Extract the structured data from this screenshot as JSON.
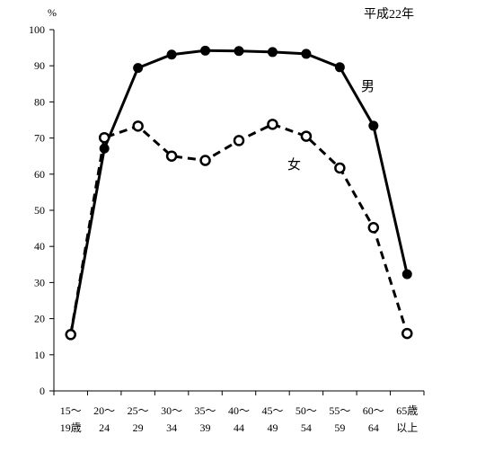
{
  "chart_data": {
    "type": "line",
    "title": "",
    "annotation": "平成22年",
    "ylabel": "%",
    "xlabel": "",
    "ylim": [
      0,
      100
    ],
    "yticks": [
      0,
      10,
      20,
      30,
      40,
      50,
      60,
      70,
      80,
      90,
      100
    ],
    "grid": false,
    "categories": [
      [
        "15～",
        "19歳"
      ],
      [
        "20～",
        "24"
      ],
      [
        "25～",
        "29"
      ],
      [
        "30～",
        "34"
      ],
      [
        "35～",
        "39"
      ],
      [
        "40～",
        "44"
      ],
      [
        "45～",
        "49"
      ],
      [
        "50～",
        "54"
      ],
      [
        "55～",
        "59"
      ],
      [
        "60～",
        "64"
      ],
      [
        "65歳",
        "以上"
      ]
    ],
    "series": [
      {
        "name": "男",
        "style": "solid",
        "marker": "filled-circle",
        "color": "#000000",
        "values": [
          15.5,
          67.1,
          89.4,
          93.1,
          94.2,
          94.1,
          93.8,
          93.3,
          89.6,
          73.4,
          32.3
        ]
      },
      {
        "name": "女",
        "style": "dashed",
        "marker": "open-circle",
        "color": "#000000",
        "values": [
          15.6,
          70.1,
          73.3,
          65.0,
          63.8,
          69.3,
          73.8,
          70.5,
          61.7,
          45.2,
          15.9
        ]
      }
    ]
  }
}
